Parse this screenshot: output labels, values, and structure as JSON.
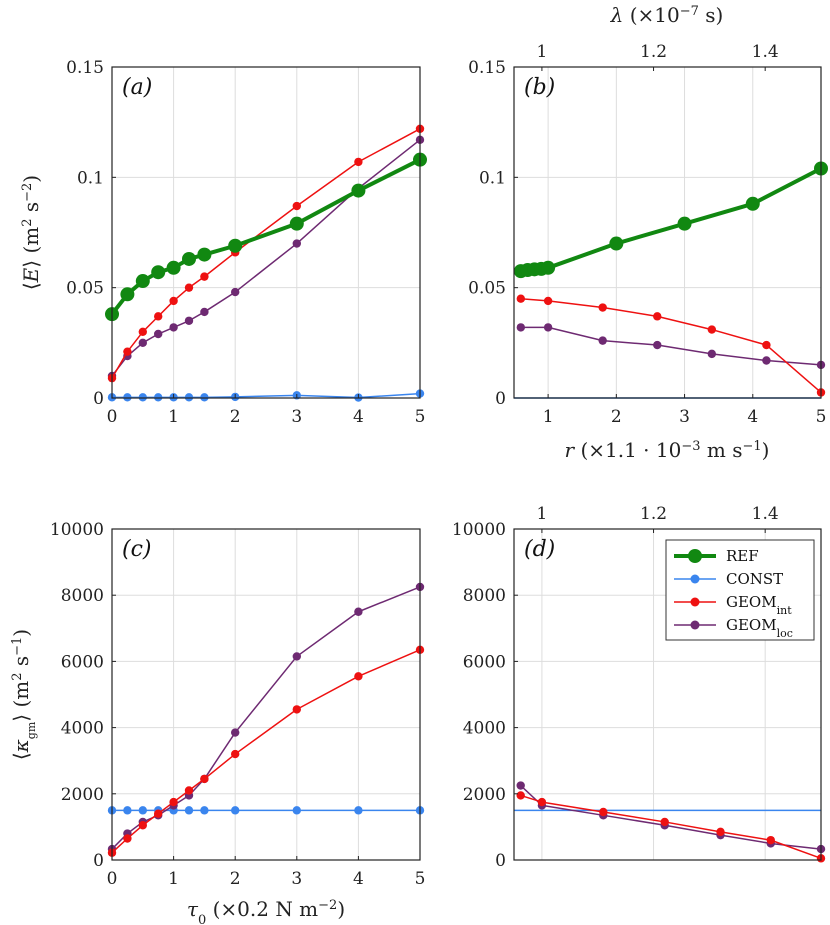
{
  "chart_data": [
    {
      "id": "a",
      "type": "line",
      "panel_label": "(a)",
      "xlim": [
        0,
        5
      ],
      "ylim": [
        0,
        0.15
      ],
      "xticks": [
        "0",
        "1",
        "2",
        "3",
        "4",
        "5"
      ],
      "yticks": [
        "0",
        "0.05",
        "0.1",
        "0.15"
      ],
      "ylabel": {
        "open": "⟨",
        "var": "E",
        "close": "⟩",
        "units_pre": " (m",
        "units_sup1": "2",
        "units_mid": " s",
        "units_sup2": "−2",
        "units_post": ")"
      },
      "series": [
        {
          "name": "REF",
          "x": [
            0,
            0.25,
            0.5,
            0.75,
            1,
            1.25,
            1.5,
            2,
            3,
            4,
            5
          ],
          "y": [
            0.038,
            0.047,
            0.053,
            0.057,
            0.059,
            0.063,
            0.065,
            0.069,
            0.079,
            0.094,
            0.108
          ]
        },
        {
          "name": "CONST",
          "x": [
            0,
            0.25,
            0.5,
            0.75,
            1,
            1.25,
            1.5,
            2,
            3,
            4,
            5
          ],
          "y": [
            0.0003,
            0.0003,
            0.0003,
            0.0003,
            0.0003,
            0.0003,
            0.0003,
            0.0005,
            0.0012,
            0.0002,
            0.002
          ]
        },
        {
          "name": "GEOM_int",
          "x": [
            0,
            0.25,
            0.5,
            0.75,
            1,
            1.25,
            1.5,
            2,
            3,
            4,
            5
          ],
          "y": [
            0.009,
            0.021,
            0.03,
            0.037,
            0.044,
            0.05,
            0.055,
            0.066,
            0.087,
            0.107,
            0.122
          ]
        },
        {
          "name": "GEOM_loc",
          "x": [
            0,
            0.25,
            0.5,
            0.75,
            1,
            1.25,
            1.5,
            2,
            3,
            4,
            5
          ],
          "y": [
            0.01,
            0.019,
            0.025,
            0.029,
            0.032,
            0.035,
            0.039,
            0.048,
            0.07,
            0.095,
            0.117
          ]
        }
      ]
    },
    {
      "id": "b",
      "type": "line",
      "panel_label": "(b)",
      "xlim": [
        0.5,
        5
      ],
      "ylim": [
        0,
        0.15
      ],
      "xticks": [
        "1",
        "2",
        "3",
        "4",
        "5"
      ],
      "yticks": [
        "0",
        "0.05",
        "0.1",
        "0.15"
      ],
      "top_axis": {
        "lim": [
          0.95,
          1.5
        ],
        "ticks": [
          "1",
          "1.2",
          "1.4"
        ],
        "label_var": "λ",
        "label_pre": " (×10",
        "label_sup": "−7",
        "label_post": " s)"
      },
      "xlabel": {
        "var": "r",
        "pre": " (×1.1 · 10",
        "sup1": "−3",
        "mid": " m s",
        "sup2": "−1",
        "post": ")"
      },
      "series": [
        {
          "name": "REF",
          "x": [
            0.6,
            0.7,
            0.8,
            0.9,
            1.0,
            2,
            3,
            4,
            5
          ],
          "y": [
            0.0575,
            0.058,
            0.0583,
            0.0585,
            0.059,
            0.07,
            0.079,
            0.088,
            0.104
          ]
        },
        {
          "name": "CONST",
          "x": [
            0.5,
            5
          ],
          "y": [
            0,
            0
          ]
        },
        {
          "name": "GEOM_int",
          "x": [
            0.6,
            1.0,
            1.8,
            2.6,
            3.4,
            4.2,
            5
          ],
          "y": [
            0.045,
            0.044,
            0.041,
            0.037,
            0.031,
            0.024,
            0.0025
          ]
        },
        {
          "name": "GEOM_loc",
          "x": [
            0.6,
            1.0,
            1.8,
            2.6,
            3.4,
            4.2,
            5
          ],
          "y": [
            0.032,
            0.032,
            0.026,
            0.024,
            0.02,
            0.017,
            0.015
          ]
        }
      ]
    },
    {
      "id": "c",
      "type": "line",
      "panel_label": "(c)",
      "xlim": [
        0,
        5
      ],
      "ylim": [
        0,
        10000
      ],
      "xticks": [
        "0",
        "1",
        "2",
        "3",
        "4",
        "5"
      ],
      "yticks": [
        "0",
        "2000",
        "4000",
        "6000",
        "8000",
        "10000"
      ],
      "xlabel": {
        "var": "τ",
        "sub": "0",
        "pre": " (×0.2 N m",
        "sup": "−2",
        "post": ")"
      },
      "ylabel": {
        "open": "⟨",
        "var": "κ",
        "sub": "gm",
        "close": "⟩",
        "units_pre": " (m",
        "units_sup1": "2",
        "units_mid": " s",
        "units_sup2": "−1",
        "units_post": ")"
      },
      "series": [
        {
          "name": "CONST",
          "x": [
            0,
            0.25,
            0.5,
            0.75,
            1,
            1.25,
            1.5,
            2,
            3,
            4,
            5
          ],
          "y": [
            1500,
            1500,
            1500,
            1500,
            1500,
            1500,
            1500,
            1500,
            1500,
            1500,
            1500
          ]
        },
        {
          "name": "GEOM_int",
          "x": [
            0,
            0.25,
            0.5,
            0.75,
            1,
            1.25,
            1.5,
            2,
            3,
            4,
            5
          ],
          "y": [
            220,
            650,
            1050,
            1400,
            1750,
            2100,
            2450,
            3200,
            4550,
            5550,
            6350
          ]
        },
        {
          "name": "GEOM_loc",
          "x": [
            0,
            0.25,
            0.5,
            0.75,
            1,
            1.25,
            1.5,
            2,
            3,
            4,
            5
          ],
          "y": [
            330,
            800,
            1150,
            1350,
            1650,
            1950,
            2450,
            3850,
            6150,
            7500,
            8250
          ]
        }
      ]
    },
    {
      "id": "d",
      "type": "line",
      "panel_label": "(d)",
      "xlim": [
        0.95,
        1.5
      ],
      "ylim": [
        0,
        10000
      ],
      "yticks": [
        "0",
        "2000",
        "4000",
        "6000",
        "8000",
        "10000"
      ],
      "top_axis": {
        "lim": [
          0.95,
          1.5
        ],
        "ticks": [
          "1",
          "1.2",
          "1.4"
        ]
      },
      "series": [
        {
          "name": "CONST",
          "x": [
            0.95,
            1.5
          ],
          "y": [
            1500,
            1500
          ]
        },
        {
          "name": "GEOM_int",
          "x": [
            0.962,
            1.0,
            1.11,
            1.22,
            1.32,
            1.41,
            1.5
          ],
          "y": [
            1950,
            1750,
            1450,
            1150,
            850,
            600,
            50
          ]
        },
        {
          "name": "GEOM_loc",
          "x": [
            0.962,
            1.0,
            1.11,
            1.22,
            1.32,
            1.41,
            1.5
          ],
          "y": [
            2250,
            1650,
            1350,
            1050,
            750,
            500,
            330
          ]
        }
      ]
    }
  ],
  "legend": {
    "placement": "top-right of panel (d)",
    "entries": [
      {
        "name": "REF",
        "text": "REF",
        "sub": ""
      },
      {
        "name": "CONST",
        "text": "CONST",
        "sub": ""
      },
      {
        "name": "GEOM_int",
        "text": "GEOM",
        "sub": "int"
      },
      {
        "name": "GEOM_loc",
        "text": "GEOM",
        "sub": "loc"
      }
    ]
  },
  "colors": {
    "REF": "#118811",
    "CONST": "#3a85ee",
    "GEOM_int": "#ee1111",
    "GEOM_loc": "#6e2a72"
  }
}
